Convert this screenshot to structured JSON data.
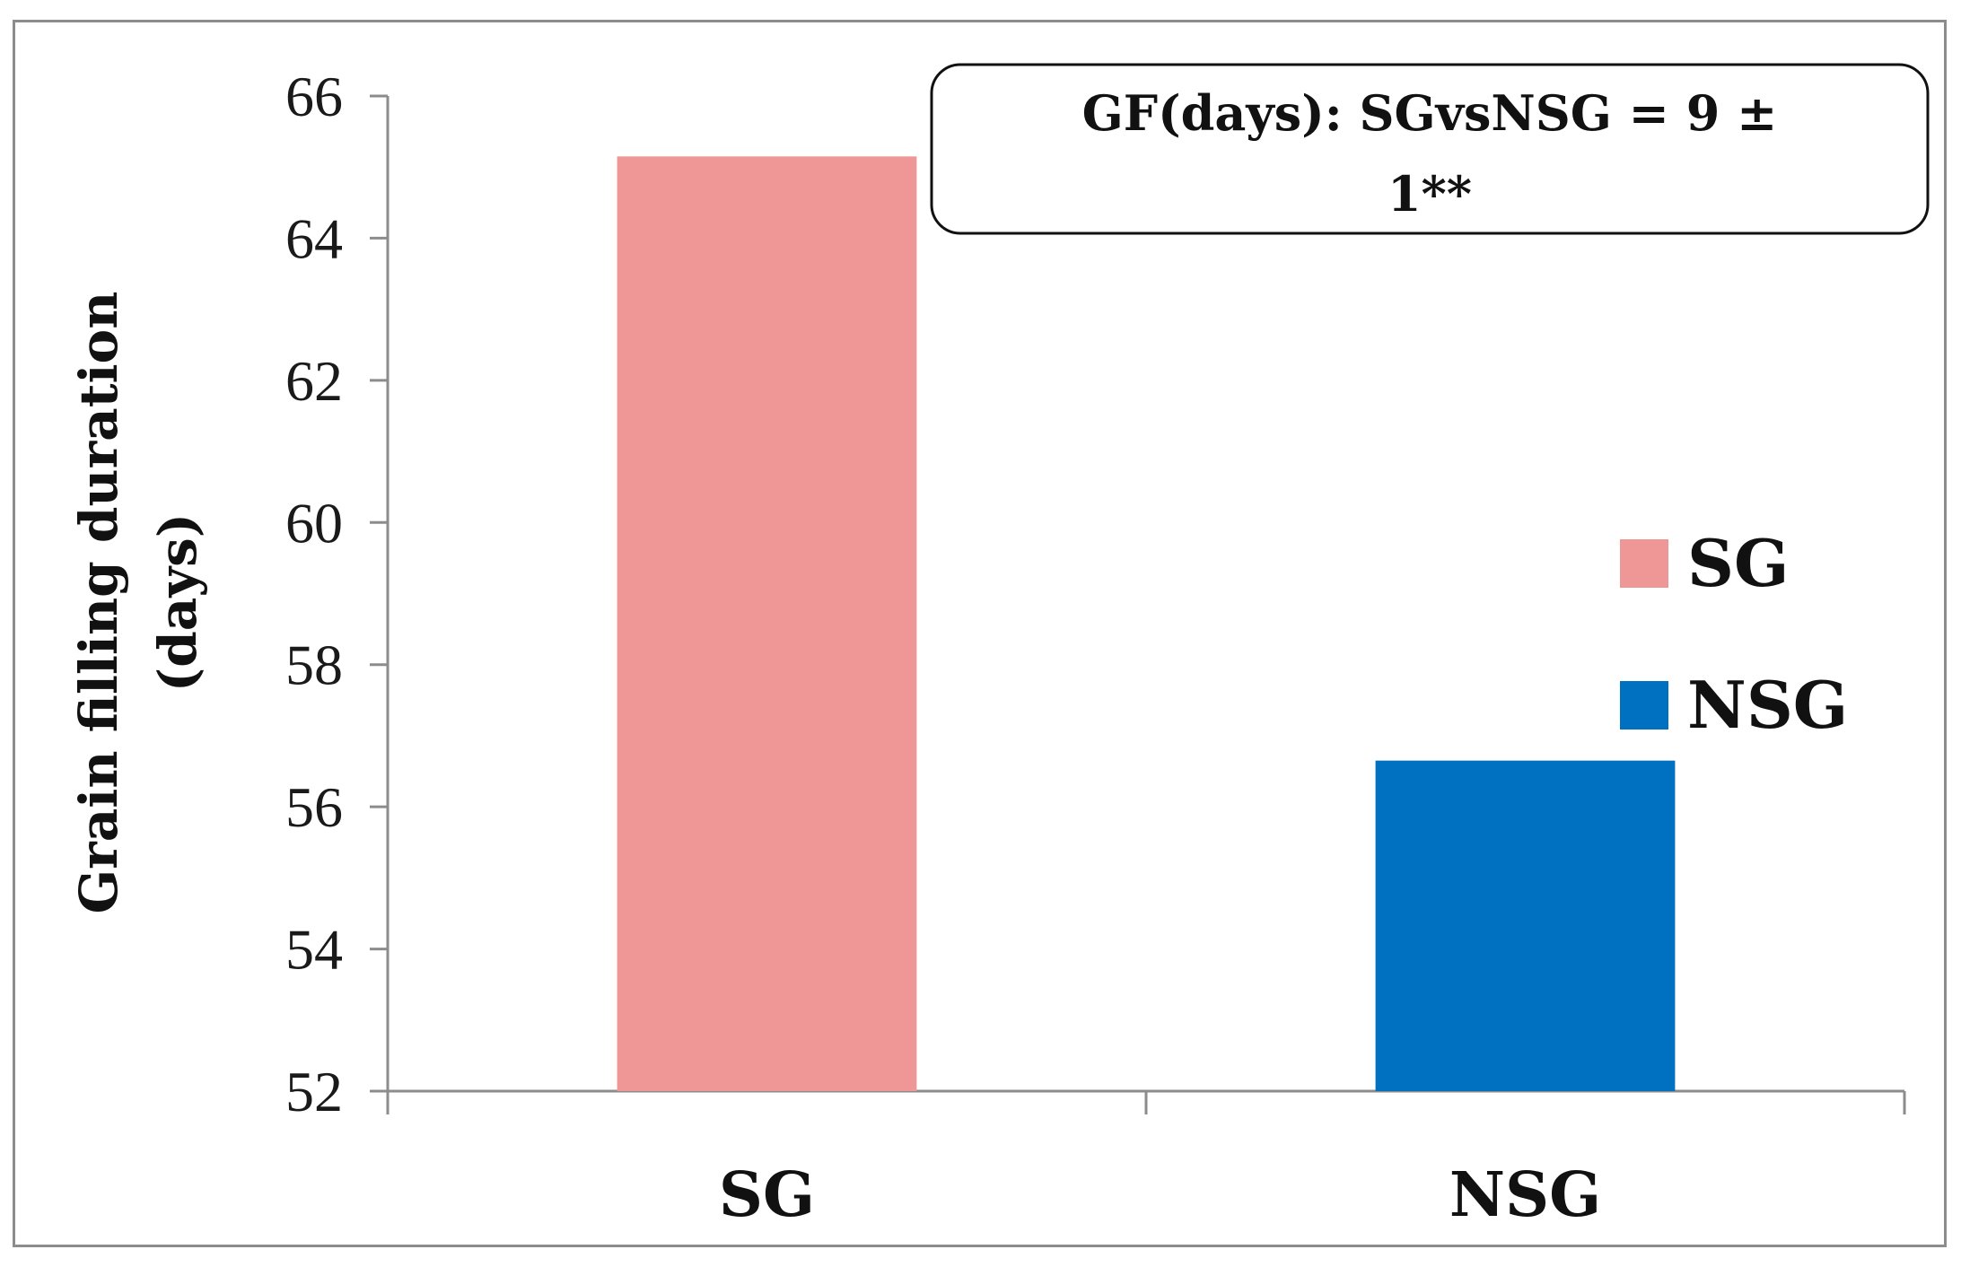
{
  "chart_data": {
    "type": "bar",
    "categories": [
      "SG",
      "NSG"
    ],
    "values": [
      65.15,
      56.65
    ],
    "colors": [
      "#ee9796",
      "#0070c0"
    ],
    "ylabel": "Grain filling duration (days)",
    "ylabel_lines": [
      "Grain filling  duration",
      "(days)"
    ],
    "xlabel": "",
    "ylim": [
      52,
      66
    ],
    "yticks": [
      52,
      54,
      56,
      58,
      60,
      62,
      64,
      66
    ],
    "grid": false,
    "legend": {
      "position": "right",
      "entries": [
        {
          "label": "SG",
          "color": "#ee9796"
        },
        {
          "label": "NSG",
          "color": "#0070c0"
        }
      ]
    },
    "annotation": {
      "lines": [
        "GF(days): SGvsNSG = 9 ±",
        "1**"
      ]
    }
  }
}
